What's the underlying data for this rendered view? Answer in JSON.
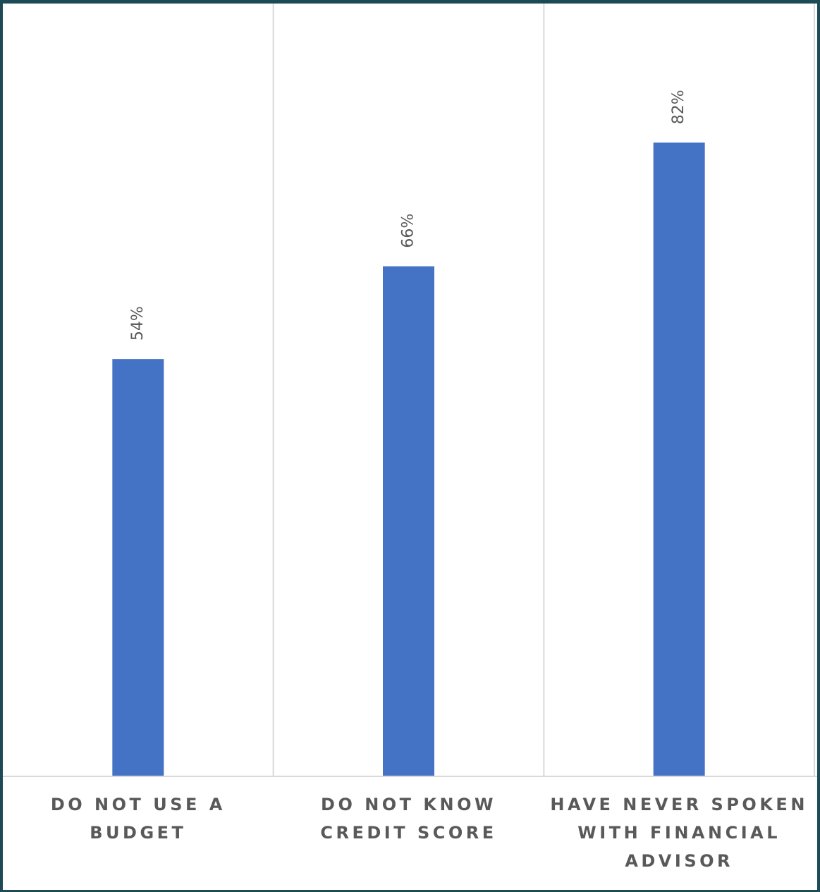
{
  "chart_data": {
    "type": "bar",
    "title": "",
    "xlabel": "",
    "ylabel": "",
    "ylim": [
      0,
      100
    ],
    "grid": "vertical category separators",
    "legend": "none",
    "categories": [
      "DO NOT USE A\nBUDGET",
      "DO NOT KNOW\nCREDIT SCORE",
      "HAVE NEVER SPOKEN\nWITH FINANCIAL\nADVISOR"
    ],
    "values": [
      54,
      66,
      82
    ],
    "data_labels": [
      "54%",
      "66%",
      "82%"
    ],
    "colors": {
      "bar": "#4472c4",
      "gridline": "#d9d9d9",
      "label": "#595959",
      "frame": "#1c4a57",
      "background": "#ffffff"
    }
  }
}
